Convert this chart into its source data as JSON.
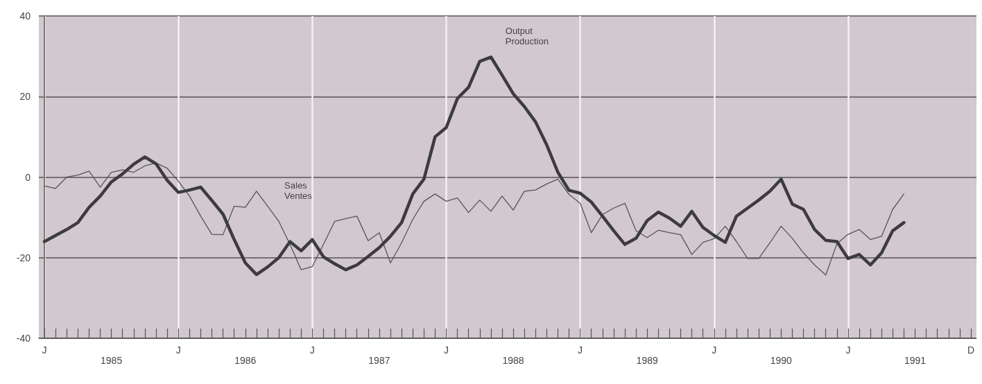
{
  "chart_data": {
    "type": "line",
    "categories": [
      "J",
      null,
      null,
      null,
      null,
      null,
      null,
      null,
      null,
      null,
      null,
      null,
      "J",
      null,
      null,
      null,
      null,
      null,
      null,
      null,
      null,
      null,
      null,
      null,
      "J",
      null,
      null,
      null,
      null,
      null,
      null,
      null,
      null,
      null,
      null,
      null,
      "J",
      null,
      null,
      null,
      null,
      null,
      null,
      null,
      null,
      null,
      null,
      null,
      "J",
      null,
      null,
      null,
      null,
      null,
      null,
      null,
      null,
      null,
      null,
      null,
      "J",
      null,
      null,
      null,
      null,
      null,
      null,
      null,
      null,
      null,
      null,
      null,
      "J",
      null,
      null,
      null,
      null,
      null,
      null,
      null,
      null,
      null,
      null,
      "D"
    ],
    "series": [
      {
        "color": "#3c3c3c",
        "values": [
          -16,
          -14.5,
          -13,
          -11.3,
          -7.5,
          -4.7,
          -1.2,
          0.8,
          3.2,
          5,
          3.3,
          -0.8,
          -3.8,
          -3.2,
          -2.5,
          -5.8,
          -9.2,
          -15.5,
          -21.3,
          -24.2,
          -22.3,
          -20,
          -16,
          -18.3,
          -15.5,
          -19.8,
          -21.5,
          -23,
          -21.8,
          -19.7,
          -17.5,
          -14.7,
          -11.3,
          -4.2,
          -0.5,
          10,
          12.3,
          19.5,
          22.3,
          28.7,
          29.8,
          25.3,
          20.7,
          17.5,
          13.7,
          8,
          1.2,
          -3.3,
          -4,
          -6.2,
          -9.7,
          -13.3,
          -16.7,
          -15.2,
          -10.8,
          -8.7,
          -10.2,
          -12.2,
          -8.5,
          -12.5,
          -14.5,
          -16.2,
          -9.7,
          -7.7,
          -5.7,
          -3.5,
          -0.5,
          -6.7,
          -8,
          -13,
          -15.7,
          -16,
          -20.2,
          -19.2,
          -21.8,
          -18.8,
          -13.3,
          -11.3,
          null,
          null,
          null,
          null,
          null,
          null
        ]
      },
      {
        "color": "#555555",
        "values": [
          -2.2,
          -2.8,
          0,
          0.5,
          1.5,
          -2.5,
          1.2,
          1.8,
          1.2,
          2.8,
          3.5,
          2.2,
          -1,
          -4.7,
          -9.7,
          -14.2,
          -14.3,
          -7.2,
          -7.5,
          -3.5,
          -7.2,
          -11,
          -16.7,
          -23,
          -22.2,
          -16.7,
          -11,
          -10.3,
          -9.7,
          -15.8,
          -13.8,
          -21.3,
          -16.3,
          -10.5,
          -6,
          -4.2,
          -6,
          -5.2,
          -8.8,
          -5.7,
          -8.5,
          -4.7,
          -8.2,
          -3.5,
          -3.2,
          -1.7,
          -0.5,
          -4.3,
          -6.5,
          -13.8,
          -9.3,
          -7.7,
          -6.5,
          -13.3,
          -15,
          -13.2,
          -13.8,
          -14.3,
          -19.2,
          -16.2,
          -15.3,
          -12.2,
          -16,
          -20.2,
          -20.2,
          -16.3,
          -12.2,
          -15.2,
          -18.8,
          -21.8,
          -24.3,
          -16.5,
          -14.2,
          -13,
          -15.5,
          -14.7,
          -8,
          -4.2,
          null,
          null,
          null,
          null,
          null,
          null
        ]
      }
    ],
    "ylim": [
      -40,
      40
    ],
    "yticks": [
      -40,
      -20,
      0,
      20,
      40
    ],
    "grid": true,
    "marker": "none",
    "line_style": "solid",
    "annotations": [
      "Output\nProduction",
      "Sales\nVentes",
      "1985",
      "1986",
      "1987",
      "1988",
      "1989",
      "1990",
      "1991"
    ]
  }
}
